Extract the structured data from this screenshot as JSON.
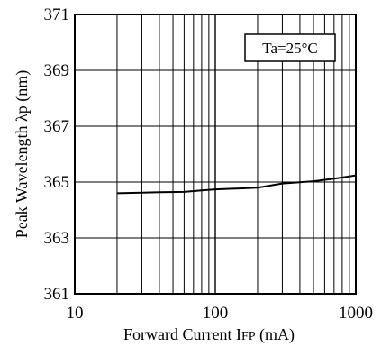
{
  "chart_data": {
    "type": "line",
    "xscale": "log",
    "xlim": [
      10,
      1000
    ],
    "ylim": [
      361,
      371
    ],
    "x_tick_labels": [
      "10",
      "100",
      "1000"
    ],
    "y_tick_labels": [
      "361",
      "363",
      "365",
      "367",
      "369",
      "371"
    ],
    "y_ticks": [
      361,
      363,
      365,
      367,
      369,
      371
    ],
    "x_ticks": [
      10,
      100,
      1000
    ],
    "grid": true,
    "xlabel": {
      "main": "Forward Current  I",
      "sub": "FP",
      "unit": " (mA)"
    },
    "ylabel": "Peak Wavelength  λp (nm)",
    "annotation": "Ta=25°C",
    "series": [
      {
        "x": [
          20,
          30,
          40,
          60,
          80,
          100,
          150,
          200,
          300,
          500,
          700,
          1000
        ],
        "y": [
          364.6,
          364.62,
          364.64,
          364.65,
          364.7,
          364.74,
          364.77,
          364.8,
          364.95,
          365.03,
          365.12,
          365.24
        ]
      }
    ]
  }
}
